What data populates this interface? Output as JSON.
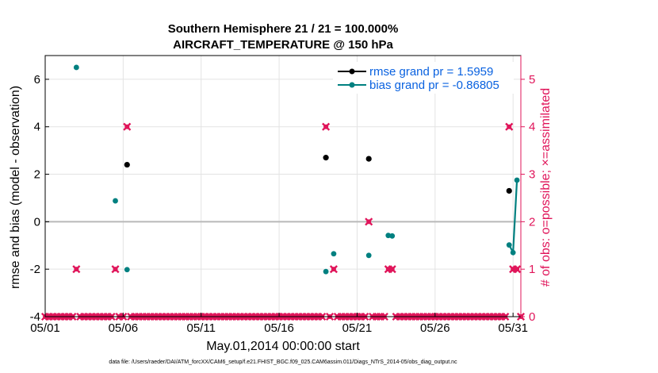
{
  "chart_data": {
    "type": "scatter",
    "title_line1": "Southern Hemisphere 21 / 21 = 100.000%",
    "title_line2": "AIRCRAFT_TEMPERATURE @ 150 hPa",
    "xlabel": "May.01,2014 00:00:00 start",
    "ylabel_left": "rmse and bias (model - observation)",
    "ylabel_right": "# of obs: o=possible; ×=assimilated",
    "xlim": [
      1,
      31.5
    ],
    "ylim_left": [
      -4,
      7
    ],
    "ylim_right": [
      0,
      5.5
    ],
    "x_ticks": [
      1,
      6,
      11,
      16,
      21,
      26,
      31
    ],
    "x_tick_labels": [
      "05/01",
      "05/06",
      "05/11",
      "05/16",
      "05/21",
      "05/26",
      "05/31"
    ],
    "y_ticks_left": [
      -4,
      -2,
      0,
      2,
      4,
      6
    ],
    "y_tick_labels_left": [
      "-4",
      "-2",
      "0",
      "2",
      "4",
      "6"
    ],
    "y_ticks_right": [
      0,
      1,
      2,
      3,
      4,
      5
    ],
    "y_tick_labels_right": [
      "0",
      "1",
      "2",
      "3",
      "4",
      "5"
    ],
    "footer": "data file: /Users/raeder/DAI/ATM_forcXX/CAM6_setup/f.e21.FHIST_BGC.f09_025.CAM6assim.011/Diags_NTrS_2014-05/obs_diag_output.nc",
    "legend": [
      {
        "label": "rmse grand pr = 1.5959",
        "color": "#000000"
      },
      {
        "label": "bias grand pr = -0.86805",
        "color": "#008080"
      }
    ],
    "series": [
      {
        "name": "rmse",
        "color": "#000000",
        "x": [
          6.25,
          19.0,
          21.75,
          30.75
        ],
        "y": [
          2.4,
          2.7,
          2.65,
          1.3
        ]
      },
      {
        "name": "bias",
        "color": "#008080",
        "connected_segments": [
          [
            30.75,
            31.0,
            31.25
          ]
        ],
        "x": [
          3.0,
          5.5,
          6.25,
          19.0,
          19.5,
          21.75,
          23.0,
          23.25,
          30.75,
          31.0,
          31.25
        ],
        "y": [
          6.5,
          0.88,
          -2.02,
          -2.1,
          -1.35,
          -1.42,
          -0.58,
          -0.6,
          -0.98,
          -1.3,
          1.75
        ]
      },
      {
        "name": "obs_possible_count",
        "axis": "right",
        "color": "#e0155a",
        "x": [
          3.0,
          5.5,
          6.25,
          19.0,
          19.5,
          21.75,
          23.0,
          23.25,
          30.75,
          31.0,
          31.25
        ],
        "y": [
          1,
          1,
          4,
          4,
          1,
          2,
          1,
          1,
          4,
          1,
          1
        ]
      },
      {
        "name": "obs_zero_count",
        "axis": "right",
        "color": "#e0155a",
        "zero_line_from": 1.0,
        "zero_line_to": 31.5,
        "zero_line_step": 0.25
      }
    ],
    "zero_reference_line": 0,
    "grid": true
  }
}
